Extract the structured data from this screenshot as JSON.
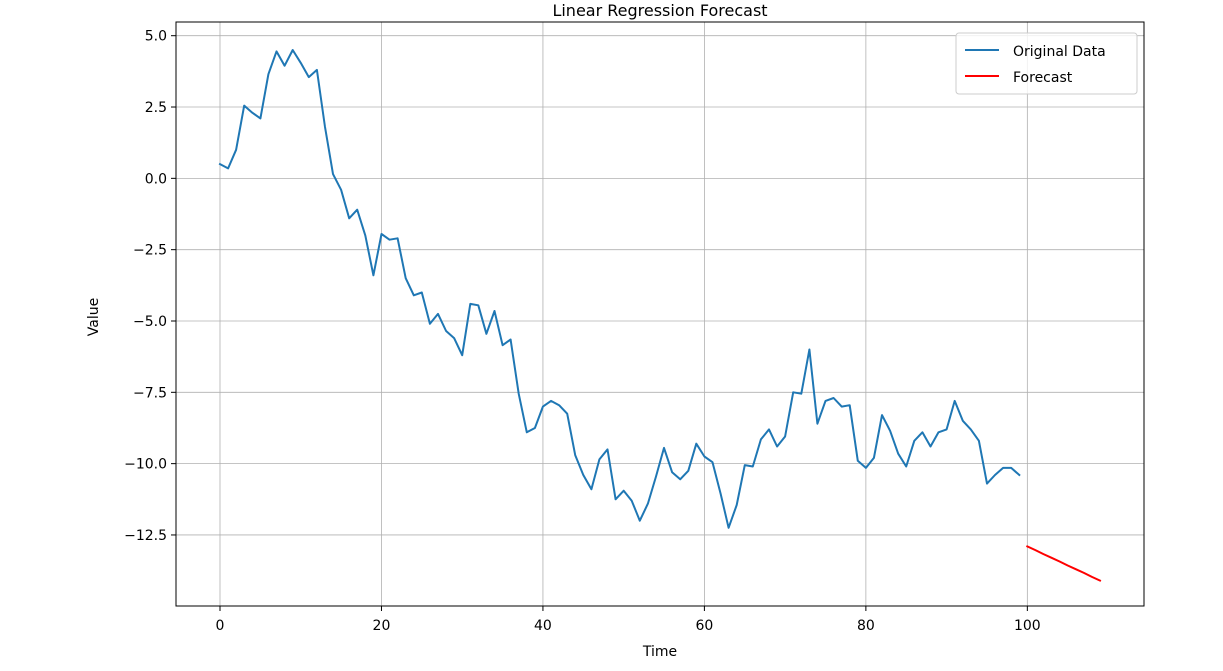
{
  "chart_data": {
    "type": "line",
    "title": "Linear Regression Forecast",
    "xlabel": "Time",
    "ylabel": "Value",
    "xlim": [
      -5.45,
      114.45
    ],
    "ylim": [
      -14.99,
      5.48
    ],
    "xticks": [
      0,
      20,
      40,
      60,
      80,
      100
    ],
    "yticks": [
      5.0,
      2.5,
      0.0,
      -2.5,
      -5.0,
      -7.5,
      -10.0,
      -12.5
    ],
    "xtick_labels": [
      "0",
      "20",
      "40",
      "60",
      "80",
      "100"
    ],
    "ytick_labels": [
      "5.0",
      "2.5",
      "0.0",
      "−2.5",
      "−5.0",
      "−7.5",
      "−10.0",
      "−12.5"
    ],
    "grid": true,
    "legend_position": "top-right",
    "series": [
      {
        "name": "Original Data",
        "color": "#1f77b4",
        "x": [
          0,
          1,
          2,
          3,
          4,
          5,
          6,
          7,
          8,
          9,
          10,
          11,
          12,
          13,
          14,
          15,
          16,
          17,
          18,
          19,
          20,
          21,
          22,
          23,
          24,
          25,
          26,
          27,
          28,
          29,
          30,
          31,
          32,
          33,
          34,
          35,
          36,
          37,
          38,
          39,
          40,
          41,
          42,
          43,
          44,
          45,
          46,
          47,
          48,
          49,
          50,
          51,
          52,
          53,
          54,
          55,
          56,
          57,
          58,
          59,
          60,
          61,
          62,
          63,
          64,
          65,
          66,
          67,
          68,
          69,
          70,
          71,
          72,
          73,
          74,
          75,
          76,
          77,
          78,
          79,
          80,
          81,
          82,
          83,
          84,
          85,
          86,
          87,
          88,
          89,
          90,
          91,
          92,
          93,
          94,
          95,
          96,
          97,
          98,
          99
        ],
        "values": [
          0.5,
          0.35,
          1.0,
          2.55,
          2.3,
          2.1,
          3.65,
          4.45,
          3.95,
          4.5,
          4.05,
          3.55,
          3.8,
          1.8,
          0.15,
          -0.4,
          -1.4,
          -1.1,
          -2.0,
          -3.4,
          -1.95,
          -2.15,
          -2.1,
          -3.5,
          -4.1,
          -4.0,
          -5.1,
          -4.75,
          -5.35,
          -5.6,
          -6.2,
          -4.4,
          -4.45,
          -5.45,
          -4.65,
          -5.85,
          -5.65,
          -7.55,
          -8.9,
          -8.75,
          -8.0,
          -7.8,
          -7.95,
          -8.25,
          -9.7,
          -10.4,
          -10.9,
          -9.85,
          -9.5,
          -11.25,
          -10.95,
          -11.3,
          -12.0,
          -11.4,
          -10.45,
          -9.45,
          -10.3,
          -10.55,
          -10.25,
          -9.3,
          -9.75,
          -9.95,
          -11.05,
          -12.25,
          -11.45,
          -10.05,
          -10.1,
          -9.15,
          -8.8,
          -9.4,
          -9.05,
          -7.5,
          -7.55,
          -6.0,
          -8.6,
          -7.8,
          -7.7,
          -8.0,
          -7.95,
          -9.9,
          -10.15,
          -9.8,
          -8.3,
          -8.85,
          -9.65,
          -10.1,
          -9.2,
          -8.9,
          -9.4,
          -8.9,
          -8.8,
          -7.8,
          -8.5,
          -8.8,
          -9.2,
          -10.7,
          -10.4,
          -10.15,
          -10.15,
          -10.4
        ]
      },
      {
        "name": "Forecast",
        "color": "#ff0000",
        "x": [
          100,
          101,
          102,
          103,
          104,
          105,
          106,
          107,
          108,
          109
        ],
        "values": [
          -12.9,
          -13.03,
          -13.17,
          -13.3,
          -13.43,
          -13.57,
          -13.7,
          -13.83,
          -13.97,
          -14.1
        ]
      }
    ]
  }
}
